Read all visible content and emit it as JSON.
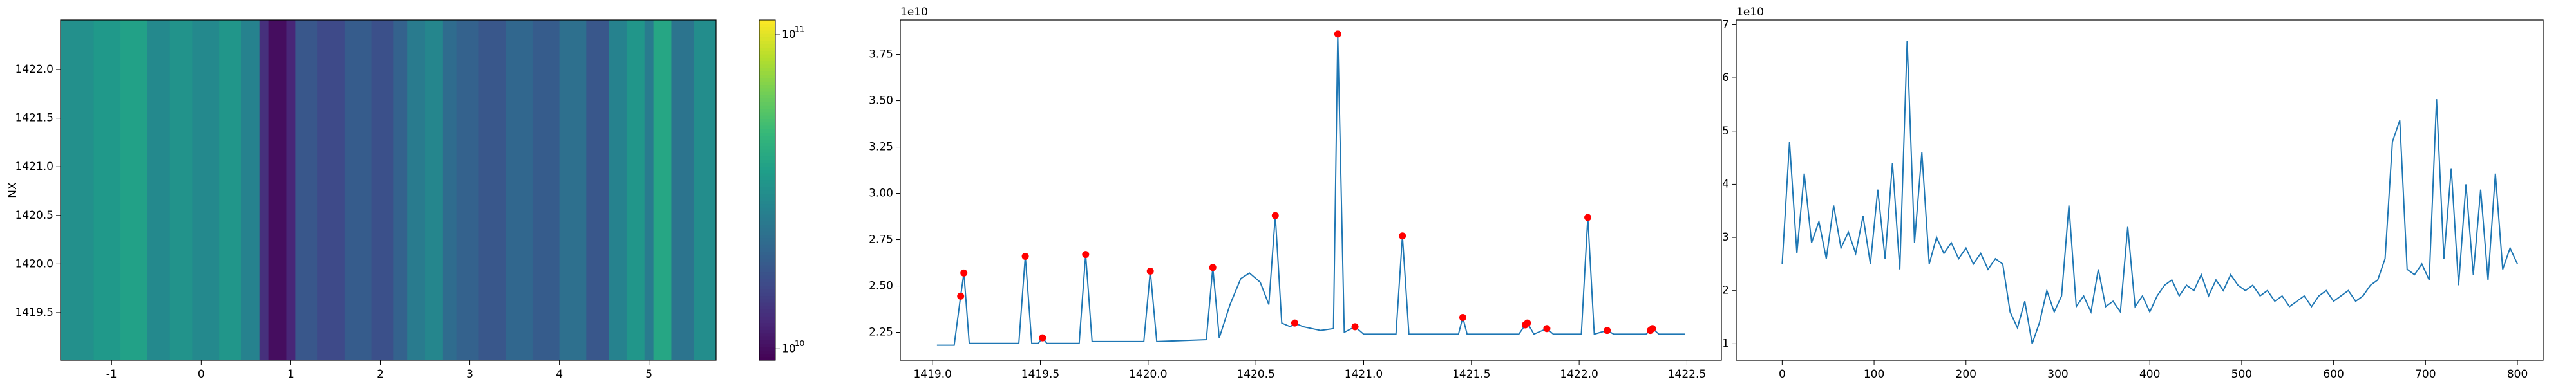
{
  "chart_data": [
    {
      "type": "heatmap",
      "ylabel": "NX",
      "colormap": "viridis",
      "color_scale": "log",
      "x_edges": [
        -1.57,
        -1.2,
        -0.9,
        -0.6,
        -0.35,
        -0.1,
        0.2,
        0.45,
        0.65,
        0.75,
        0.95,
        1.05,
        1.3,
        1.6,
        1.9,
        2.15,
        2.3,
        2.5,
        2.7,
        2.85,
        3.1,
        3.4,
        3.7,
        4.0,
        4.3,
        4.55,
        4.75,
        4.95,
        5.05,
        5.25,
        5.5,
        5.75
      ],
      "values": [
        32000000000,
        35000000000,
        38000000000,
        30000000000,
        33000000000,
        30000000000,
        34000000000,
        28000000000,
        13000000000,
        10000000000,
        12000000000,
        18000000000,
        16000000000,
        19000000000,
        17000000000,
        20000000000,
        26000000000,
        29000000000,
        22000000000,
        20000000000,
        18000000000,
        21000000000,
        19000000000,
        23000000000,
        18000000000,
        28000000000,
        34000000000,
        26000000000,
        40000000000,
        24000000000,
        31000000000
      ],
      "xlim": [
        -1.57,
        5.75
      ],
      "ylim": [
        1419.01,
        1422.51
      ],
      "xticks": [
        -1,
        0,
        1,
        2,
        3,
        4,
        5
      ],
      "yticks": [
        1419.5,
        {
          "value": 1420,
          "label": "1420.0"
        },
        1420.5,
        {
          "value": 1421,
          "label": "1421.0"
        },
        1421.5,
        {
          "value": 1422,
          "label": "1422.0"
        }
      ],
      "clim": [
        9200000000,
        111500000000
      ],
      "cbar_ticks": [
        {
          "value": 10000000000,
          "label": "10",
          "exponent": "10"
        },
        {
          "value": 100000000000,
          "label": "10",
          "exponent": "11"
        }
      ]
    },
    {
      "type": "line",
      "offset_label": "1e10",
      "series": [
        {
          "color": "#1f77b4",
          "style": "line",
          "x": [
            1419.02,
            1419.1,
            1419.13,
            1419.145,
            1419.17,
            1419.4,
            1419.43,
            1419.46,
            1419.49,
            1419.51,
            1419.53,
            1419.68,
            1419.71,
            1419.74,
            1419.98,
            1420.01,
            1420.04,
            1420.27,
            1420.3,
            1420.33,
            1420.38,
            1420.43,
            1420.47,
            1420.52,
            1420.56,
            1420.59,
            1420.62,
            1420.66,
            1420.68,
            1420.72,
            1420.8,
            1420.86,
            1420.88,
            1420.91,
            1420.96,
            1421.0,
            1421.15,
            1421.18,
            1421.21,
            1421.44,
            1421.46,
            1421.48,
            1421.72,
            1421.75,
            1421.76,
            1421.79,
            1421.85,
            1421.88,
            1422.01,
            1422.04,
            1422.07,
            1422.13,
            1422.16,
            1422.31,
            1422.33,
            1422.34,
            1422.37,
            1422.49
          ],
          "values": [
            2.18,
            2.18,
            2.445,
            2.57,
            2.19,
            2.19,
            2.66,
            2.19,
            2.19,
            2.22,
            2.19,
            2.19,
            2.67,
            2.2,
            2.2,
            2.58,
            2.2,
            2.21,
            2.6,
            2.22,
            2.4,
            2.54,
            2.57,
            2.52,
            2.4,
            2.88,
            2.3,
            2.28,
            2.3,
            2.28,
            2.26,
            2.27,
            3.86,
            2.25,
            2.28,
            2.24,
            2.24,
            2.77,
            2.24,
            2.24,
            2.33,
            2.24,
            2.24,
            2.29,
            2.3,
            2.24,
            2.27,
            2.24,
            2.24,
            2.87,
            2.24,
            2.26,
            2.24,
            2.24,
            2.26,
            2.27,
            2.24,
            2.24
          ]
        },
        {
          "color": "red",
          "style": "markers",
          "x": [
            1419.13,
            1419.145,
            1419.43,
            1419.51,
            1419.71,
            1420.01,
            1420.3,
            1420.59,
            1420.68,
            1420.88,
            1420.96,
            1421.18,
            1421.46,
            1421.75,
            1421.76,
            1421.85,
            1422.04,
            1422.13,
            1422.33,
            1422.34
          ],
          "values": [
            2.445,
            2.57,
            2.66,
            2.22,
            2.67,
            2.58,
            2.6,
            2.88,
            2.3,
            3.86,
            2.28,
            2.77,
            2.33,
            2.29,
            2.3,
            2.27,
            2.87,
            2.26,
            2.26,
            2.27
          ]
        }
      ],
      "xlim": [
        1418.85,
        1422.66
      ],
      "ylim": [
        2.099,
        3.936
      ],
      "xticks": [
        {
          "value": 1419,
          "label": "1419.0"
        },
        1419.5,
        {
          "value": 1420,
          "label": "1420.0"
        },
        1420.5,
        {
          "value": 1421,
          "label": "1421.0"
        },
        1421.5,
        {
          "value": 1422,
          "label": "1422.0"
        },
        1422.5
      ],
      "yticks": [
        2.25,
        {
          "value": 2.5,
          "label": "2.50"
        },
        2.75,
        {
          "value": 3,
          "label": "3.00"
        },
        3.25,
        {
          "value": 3.5,
          "label": "3.50"
        },
        3.75
      ]
    },
    {
      "type": "line",
      "offset_label": "1e10",
      "series": [
        {
          "color": "#1f77b4",
          "style": "line",
          "x": [
            0,
            8,
            16,
            24,
            32,
            40,
            48,
            56,
            64,
            72,
            80,
            88,
            96,
            104,
            112,
            120,
            128,
            136,
            144,
            152,
            160,
            168,
            176,
            184,
            192,
            200,
            208,
            216,
            224,
            232,
            240,
            248,
            256,
            264,
            272,
            280,
            288,
            296,
            304,
            312,
            320,
            328,
            336,
            344,
            352,
            360,
            368,
            376,
            384,
            392,
            400,
            408,
            416,
            424,
            432,
            440,
            448,
            456,
            464,
            472,
            480,
            488,
            496,
            504,
            512,
            520,
            528,
            536,
            544,
            552,
            560,
            568,
            576,
            584,
            592,
            600,
            608,
            616,
            624,
            632,
            640,
            648,
            656,
            664,
            672,
            680,
            688,
            696,
            704,
            712,
            720,
            728,
            736,
            744,
            752,
            760,
            768,
            776,
            784,
            792,
            800
          ],
          "values": [
            2.5,
            4.8,
            2.7,
            4.2,
            2.9,
            3.3,
            2.6,
            3.6,
            2.8,
            3.1,
            2.7,
            3.4,
            2.5,
            3.9,
            2.6,
            4.4,
            2.4,
            6.7,
            2.9,
            4.6,
            2.5,
            3.0,
            2.7,
            2.9,
            2.6,
            2.8,
            2.5,
            2.7,
            2.4,
            2.6,
            2.5,
            1.6,
            1.3,
            1.8,
            1.0,
            1.4,
            2.0,
            1.6,
            1.9,
            3.6,
            1.7,
            1.9,
            1.6,
            2.4,
            1.7,
            1.8,
            1.6,
            3.2,
            1.7,
            1.9,
            1.6,
            1.9,
            2.1,
            2.2,
            1.9,
            2.1,
            2.0,
            2.3,
            1.9,
            2.2,
            2.0,
            2.3,
            2.1,
            2.0,
            2.1,
            1.9,
            2.0,
            1.8,
            1.9,
            1.7,
            1.8,
            1.9,
            1.7,
            1.9,
            2.0,
            1.8,
            1.9,
            2.0,
            1.8,
            1.9,
            2.1,
            2.2,
            2.6,
            4.8,
            5.2,
            2.4,
            2.3,
            2.5,
            2.2,
            5.6,
            2.6,
            4.3,
            2.1,
            4.0,
            2.3,
            3.9,
            2.2,
            4.2,
            2.4,
            2.8,
            2.5
          ]
        }
      ],
      "xlim": [
        -50,
        828
      ],
      "ylim": [
        0.69,
        7.09
      ],
      "xticks": [
        0,
        100,
        200,
        300,
        400,
        500,
        600,
        700,
        800
      ],
      "yticks": [
        1,
        2,
        3,
        4,
        5,
        6,
        7
      ]
    }
  ]
}
